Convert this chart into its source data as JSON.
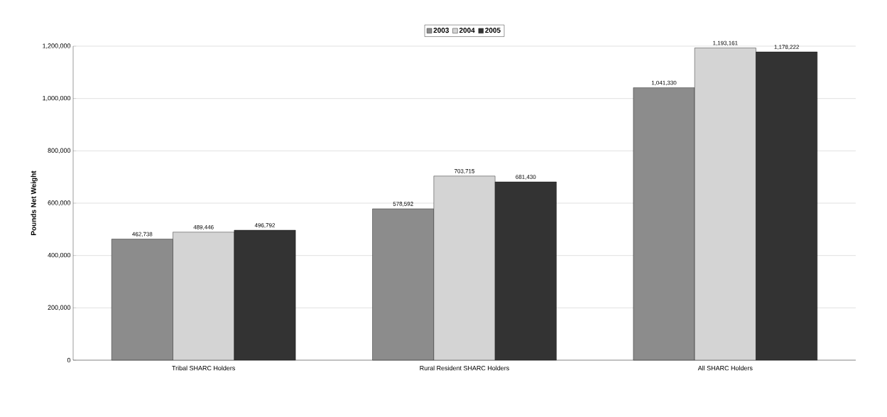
{
  "chart_data": {
    "type": "bar",
    "ylabel": "Pounds Net Weight",
    "categories": [
      "Tribal SHARC Holders",
      "Rural Resident SHARC Holders",
      "All SHARC Holders"
    ],
    "series": [
      {
        "name": "2003",
        "color": "#8c8c8c",
        "values": [
          462738,
          578592,
          1041330
        ],
        "value_labels": [
          "462,738",
          "578,592",
          "1,041,330"
        ]
      },
      {
        "name": "2004",
        "color": "#d4d4d4",
        "values": [
          489446,
          703715,
          1193161
        ],
        "value_labels": [
          "489,446",
          "703,715",
          "1,193,161"
        ]
      },
      {
        "name": "2005",
        "color": "#333333",
        "values": [
          496792,
          681430,
          1178222
        ],
        "value_labels": [
          "496,792",
          "681,430",
          "1,178,222"
        ]
      }
    ],
    "ylim": [
      0,
      1200000
    ],
    "yticks": [
      {
        "value": 0,
        "label": "0"
      },
      {
        "value": 200000,
        "label": "200,000"
      },
      {
        "value": 400000,
        "label": "400,000"
      },
      {
        "value": 600000,
        "label": "600,000"
      },
      {
        "value": 800000,
        "label": "800,000"
      },
      {
        "value": 1000000,
        "label": "1,000,000"
      },
      {
        "value": 1200000,
        "label": "1,200,000"
      }
    ],
    "grid": "y",
    "legend": "top"
  }
}
